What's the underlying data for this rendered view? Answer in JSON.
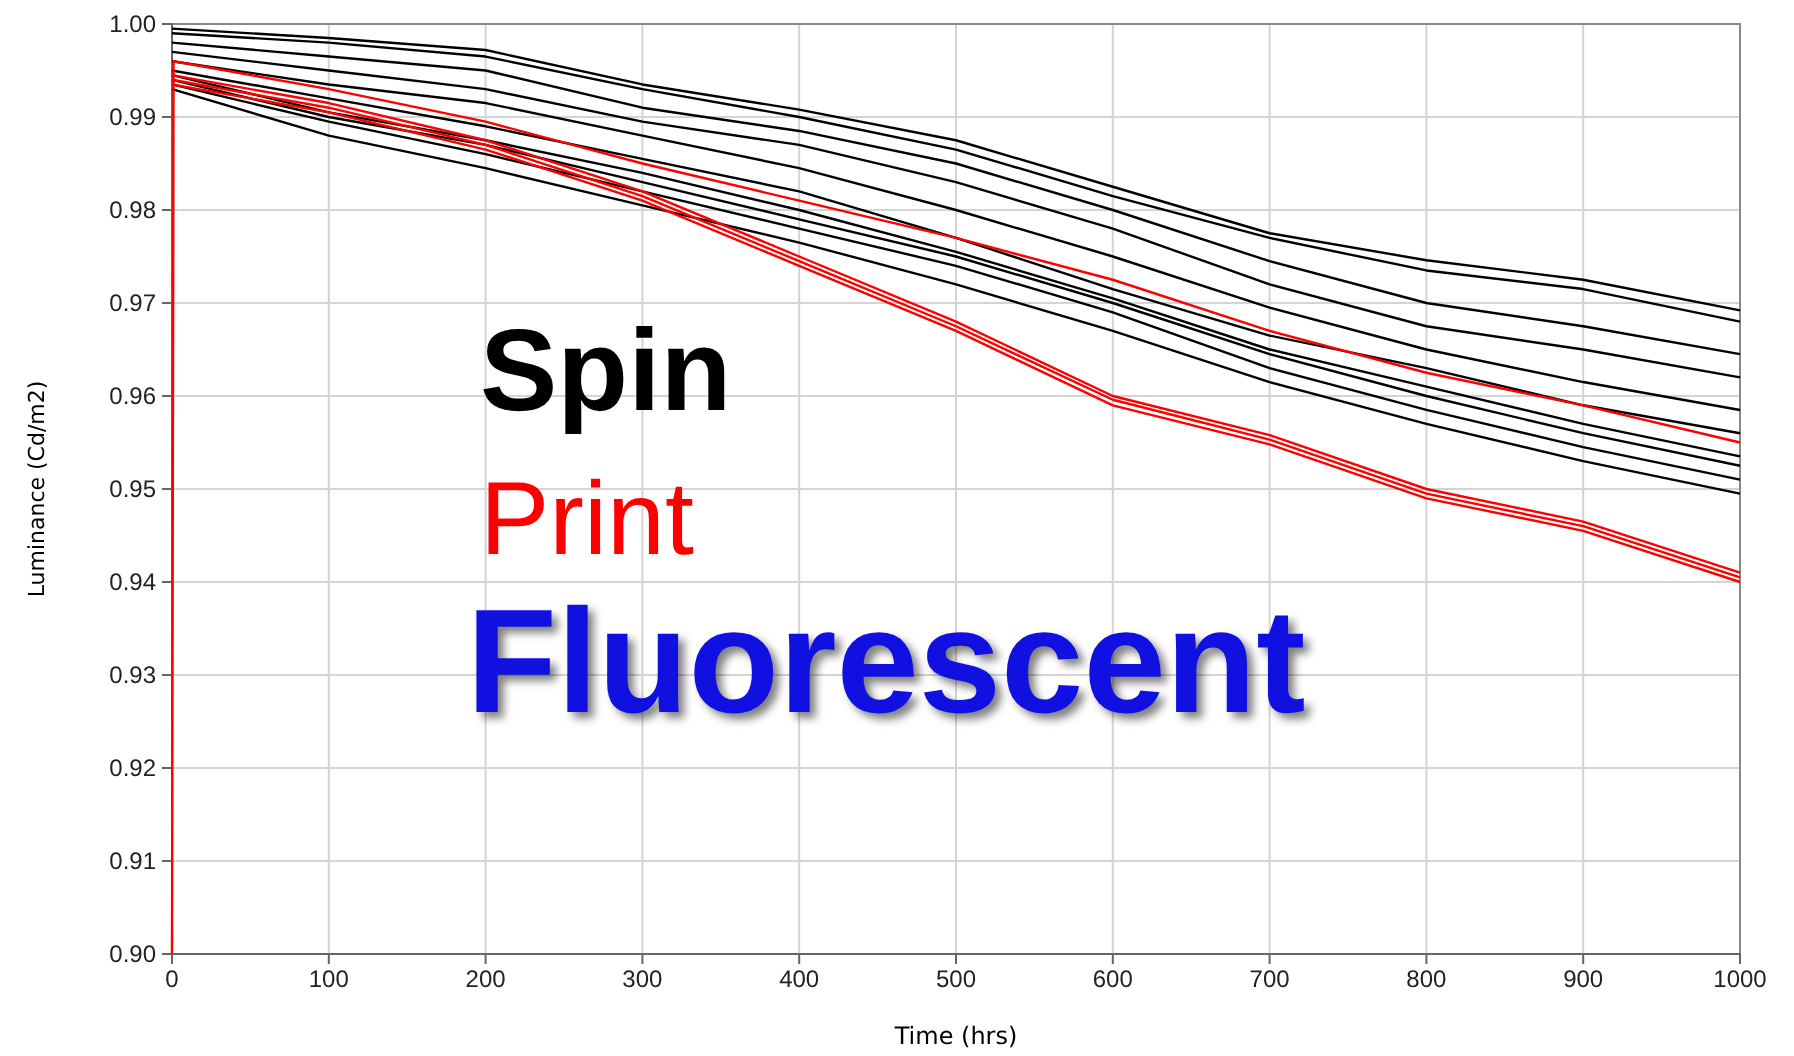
{
  "chart_data": {
    "type": "line",
    "title": "Fluorescent",
    "xlabel": "Time (hrs)",
    "ylabel": "Luminance (Cd/m2)",
    "x": [
      0,
      100,
      200,
      300,
      400,
      500,
      600,
      700,
      800,
      900,
      1000
    ],
    "series": [
      {
        "name": "Spin",
        "color": "#000000",
        "values": [
          0.9995,
          0.9985,
          0.9972,
          0.9935,
          0.9908,
          0.9875,
          0.9825,
          0.9775,
          0.9746,
          0.9725,
          0.9692
        ]
      },
      {
        "color": "#000000",
        "values": [
          0.999,
          0.998,
          0.9965,
          0.993,
          0.99,
          0.9865,
          0.9815,
          0.977,
          0.9735,
          0.9715,
          0.968
        ]
      },
      {
        "color": "#000000",
        "values": [
          0.998,
          0.9965,
          0.995,
          0.991,
          0.9885,
          0.985,
          0.98,
          0.9745,
          0.97,
          0.9675,
          0.9645
        ]
      },
      {
        "color": "#000000",
        "values": [
          0.997,
          0.995,
          0.993,
          0.9895,
          0.987,
          0.983,
          0.978,
          0.972,
          0.9675,
          0.965,
          0.962
        ]
      },
      {
        "color": "#000000",
        "values": [
          0.996,
          0.9935,
          0.9915,
          0.988,
          0.9845,
          0.98,
          0.975,
          0.9695,
          0.965,
          0.9615,
          0.9585
        ]
      },
      {
        "color": "#000000",
        "values": [
          0.995,
          0.992,
          0.989,
          0.9855,
          0.982,
          0.977,
          0.9715,
          0.9665,
          0.963,
          0.959,
          0.956
        ]
      },
      {
        "color": "#000000",
        "values": [
          0.9945,
          0.9905,
          0.9875,
          0.984,
          0.98,
          0.9755,
          0.9705,
          0.965,
          0.961,
          0.957,
          0.9535
        ]
      },
      {
        "color": "#000000",
        "values": [
          0.994,
          0.99,
          0.987,
          0.983,
          0.979,
          0.975,
          0.97,
          0.9645,
          0.96,
          0.956,
          0.9525
        ]
      },
      {
        "color": "#000000",
        "values": [
          0.9935,
          0.9895,
          0.986,
          0.982,
          0.978,
          0.974,
          0.969,
          0.963,
          0.9585,
          0.9545,
          0.951
        ]
      },
      {
        "color": "#000000",
        "values": [
          0.993,
          0.988,
          0.9845,
          0.9805,
          0.9765,
          0.972,
          0.967,
          0.9615,
          0.957,
          0.953,
          0.9495
        ]
      },
      {
        "name": "Print",
        "color": "#ff0000",
        "x": [
          0,
          1,
          100,
          200,
          300,
          400,
          500,
          600,
          700,
          800,
          900,
          1000
        ],
        "values": [
          0.9,
          0.996,
          0.993,
          0.9895,
          0.985,
          0.981,
          0.977,
          0.9725,
          0.967,
          0.9625,
          0.959,
          0.955
        ]
      },
      {
        "color": "#ff0000",
        "values": [
          0.994,
          0.991,
          0.987,
          0.9815,
          0.9745,
          0.9675,
          0.9596,
          0.9553,
          0.9495,
          0.946,
          0.9405
        ]
      },
      {
        "color": "#ff0000",
        "values": [
          0.9935,
          0.9905,
          0.9865,
          0.981,
          0.974,
          0.967,
          0.959,
          0.9548,
          0.949,
          0.9455,
          0.94
        ]
      },
      {
        "color": "#ff0000",
        "values": [
          0.9945,
          0.9915,
          0.9875,
          0.982,
          0.975,
          0.968,
          0.96,
          0.9558,
          0.95,
          0.9465,
          0.941
        ]
      }
    ],
    "xlim": [
      0,
      1000
    ],
    "xticks": [
      0,
      100,
      200,
      300,
      400,
      500,
      600,
      700,
      800,
      900,
      1000
    ],
    "ylim": [
      0.9,
      1.0
    ],
    "yticks": [
      {
        "value": 0.9,
        "label": "0.90"
      },
      {
        "value": 0.91,
        "label": "0.91"
      },
      {
        "value": 0.92,
        "label": "0.92"
      },
      {
        "value": 0.93,
        "label": "0.93"
      },
      {
        "value": 0.94,
        "label": "0.94"
      },
      {
        "value": 0.95,
        "label": "0.95"
      },
      {
        "value": 0.96,
        "label": "0.96"
      },
      {
        "value": 0.97,
        "label": "0.97"
      },
      {
        "value": 0.98,
        "label": "0.98"
      },
      {
        "value": 0.99,
        "label": "0.99"
      },
      {
        "value": 1.0,
        "label": "1.00"
      }
    ],
    "grid": true,
    "legend": "left",
    "marker": "none",
    "line_style": "solid"
  }
}
